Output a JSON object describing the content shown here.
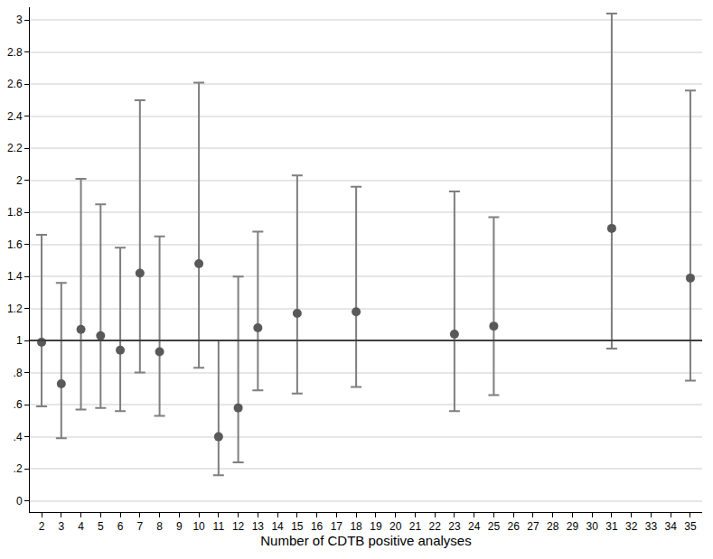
{
  "chart_data": {
    "type": "scatter",
    "xlabel": "Number of CDTB positive analyses",
    "x": [
      2,
      3,
      4,
      5,
      6,
      7,
      8,
      10,
      11,
      12,
      13,
      15,
      18,
      23,
      25,
      31,
      35
    ],
    "values": [
      0.99,
      0.73,
      1.07,
      1.03,
      0.94,
      1.42,
      0.93,
      1.48,
      0.4,
      0.58,
      1.08,
      1.17,
      1.18,
      1.04,
      1.09,
      1.7,
      1.39
    ],
    "ci_low": [
      0.59,
      0.39,
      0.57,
      0.58,
      0.56,
      0.8,
      0.53,
      0.83,
      0.16,
      0.24,
      0.69,
      0.67,
      0.71,
      0.56,
      0.66,
      0.95,
      0.75
    ],
    "ci_high": [
      1.66,
      1.36,
      2.01,
      1.85,
      1.58,
      2.5,
      1.65,
      2.61,
      1.0,
      1.4,
      1.68,
      2.03,
      1.96,
      1.93,
      1.77,
      3.04,
      2.56
    ],
    "color": "#595959",
    "marker": "circle",
    "reference_y": 1,
    "xlim": [
      1.4,
      35.6
    ],
    "xticks": [
      2,
      3,
      4,
      5,
      6,
      7,
      8,
      9,
      10,
      11,
      12,
      13,
      14,
      15,
      16,
      17,
      18,
      19,
      20,
      21,
      22,
      23,
      24,
      25,
      26,
      27,
      28,
      29,
      30,
      31,
      32,
      33,
      34,
      35
    ],
    "ylim": [
      -0.07,
      3.08
    ],
    "yticks": [
      0,
      {
        "value": 0.2,
        "label": ".2"
      },
      {
        "value": 0.4,
        "label": ".4"
      },
      {
        "value": 0.6,
        "label": ".6"
      },
      {
        "value": 0.8,
        "label": ".8"
      },
      1,
      1.2,
      1.4,
      1.6,
      1.8,
      2,
      2.2,
      2.4,
      2.6,
      2.8,
      3
    ],
    "grid": true
  }
}
